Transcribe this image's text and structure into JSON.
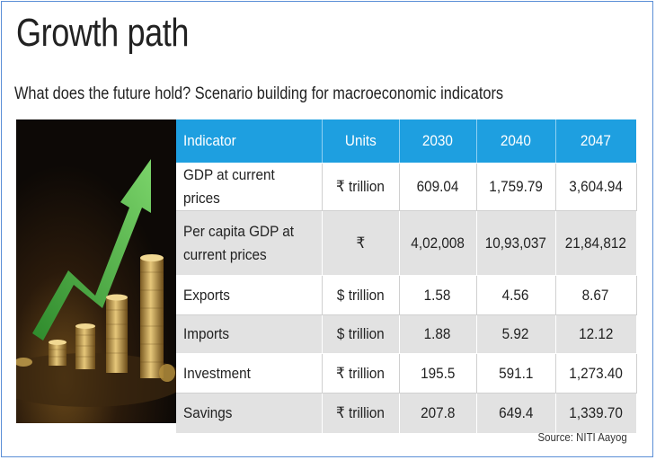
{
  "title": "Growth path",
  "subtitle": "What does the future hold? Scenario building for macroeconomic indicators",
  "source": "Source: NITI Aayog",
  "colors": {
    "header_bg": "#1e9fe0",
    "row_grey": "#e2e2e2",
    "row_white": "#ffffff",
    "frame_border": "#5b8fd6",
    "arrow_green": "#4cb848"
  },
  "image": {
    "icon": "rising-arrow-over-coin-stacks"
  },
  "chart_data": {
    "type": "table",
    "columns": [
      "Indicator",
      "Units",
      "2030",
      "2040",
      "2047"
    ],
    "rows": [
      [
        "GDP at current prices",
        "₹ trillion",
        "609.04",
        "1,759.79",
        "3,604.94"
      ],
      [
        "Per capita GDP at current prices",
        "₹",
        "4,02,008",
        "10,93,037",
        "21,84,812"
      ],
      [
        "Exports",
        "$ trillion",
        "1.58",
        "4.56",
        "8.67"
      ],
      [
        "Imports",
        "$ trillion",
        "1.88",
        "5.92",
        "12.12"
      ],
      [
        "Investment",
        "₹ trillion",
        "195.5",
        "591.1",
        "1,273.40"
      ],
      [
        "Savings",
        "₹ trillion",
        "207.8",
        "649.4",
        "1,339.70"
      ]
    ]
  }
}
